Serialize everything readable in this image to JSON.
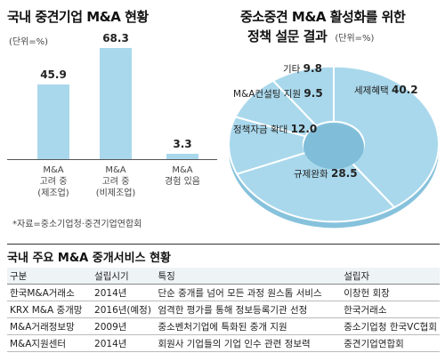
{
  "left_chart": {
    "title": "국내 중견기업 M&A 현황",
    "unit": "(단위=%)",
    "source": "*자료=중소기업청·중견기업연합회"
  },
  "right_chart": {
    "title_line1": "중소중견 M&A 활성화를 위한",
    "title_line2": "정책 설문 결과",
    "unit": "(단위=%)"
  },
  "chart_data": [
    {
      "type": "bar",
      "title": "국내 중견기업 M&A 현황",
      "categories": [
        "M&A\n고려 중\n(제조업)",
        "M&A\n고려 중\n(비제조업)",
        "M&A\n경험 있음"
      ],
      "values": [
        45.9,
        68.3,
        3.3
      ],
      "ylim": [
        0,
        70
      ],
      "color": "#a9d8ec"
    },
    {
      "type": "pie",
      "title": "중소중견 M&A 활성화를 위한 정책 설문 결과",
      "categories": [
        "세제혜택",
        "규제완화",
        "정책자금 확대",
        "M&A컨설팅 지원",
        "기타"
      ],
      "values": [
        40.2,
        28.5,
        12.0,
        9.5,
        9.8
      ],
      "value_labels": [
        "40.2",
        "28.5",
        "12.0",
        "9.5",
        "9.8"
      ],
      "donut": true,
      "color": "#a9d8ec",
      "separator_color": "#ffffff"
    }
  ],
  "table": {
    "title": "국내 주요 M&A 중개서비스 현황",
    "headers": [
      "구분",
      "설립시기",
      "특징",
      "설립자"
    ],
    "rows": [
      [
        "한국M&A거래소",
        "2014년",
        "단순 중개를 넘어 모든 과정 원스톱 서비스",
        "이창헌 회장"
      ],
      [
        "KRX M&A 중개망",
        "2016년(예정)",
        "엄격한 평가를 통해 정보등록기관 선정",
        "한국거래소"
      ],
      [
        "M&A거래정보망",
        "2009년",
        "중소벤처기업에 특화된 중개 지원",
        "중소기업청 한국VC협회"
      ],
      [
        "M&A지원센터",
        "2014년",
        "회원사 기업들의 기업 인수 관련 정보력",
        "중견기업연합회"
      ]
    ]
  }
}
